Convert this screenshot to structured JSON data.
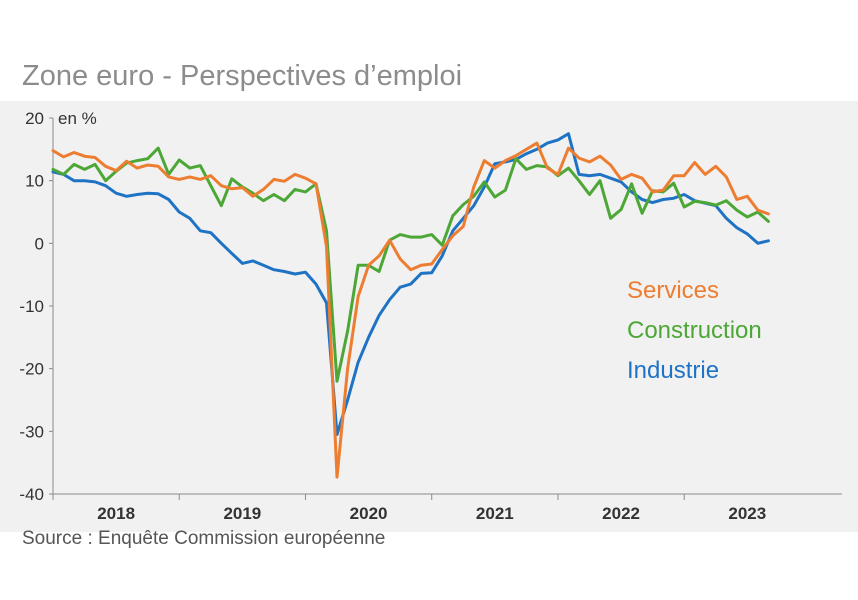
{
  "title": "Zone euro - Perspectives d’emploi",
  "source": "Source : Enquête Commission européenne",
  "colors": {
    "services": "#ed7d31",
    "construction": "#4ca736",
    "industrie": "#1f73c4",
    "background": "#f1f1f1"
  },
  "chart_data": {
    "type": "line",
    "title": "Zone euro - Perspectives d’emploi",
    "ylabel": "en %",
    "xlabel": "",
    "ylim": [
      -40,
      20
    ],
    "yticks": [
      "20",
      "10",
      "0",
      "-10",
      "-20",
      "-30",
      "-40"
    ],
    "xlim": [
      2017.5,
      2023.75
    ],
    "xticks": [
      {
        "label": "2018",
        "x": 2018.0
      },
      {
        "label": "2019",
        "x": 2019.0
      },
      {
        "label": "2020",
        "x": 2020.0
      },
      {
        "label": "2021",
        "x": 2021.0
      },
      {
        "label": "2022",
        "x": 2022.0
      },
      {
        "label": "2023",
        "x": 2023.0
      }
    ],
    "x_start": 2017.5,
    "x_step": 0.0833333,
    "series": [
      {
        "name": "Services",
        "values": [
          14.8,
          13.8,
          14.5,
          13.9,
          13.7,
          12.3,
          11.6,
          13.1,
          12.0,
          12.5,
          12.3,
          10.6,
          10.2,
          10.6,
          10.2,
          10.8,
          9.2,
          8.7,
          8.9,
          7.5,
          8.6,
          10.2,
          9.9,
          11.0,
          10.4,
          9.5,
          -0.5,
          -37.3,
          -20.0,
          -8.5,
          -3.5,
          -2.0,
          0.5,
          -2.5,
          -4.2,
          -3.5,
          -3.3,
          -1.0,
          1.2,
          2.7,
          9.0,
          13.2,
          12.0,
          13.2,
          14.0,
          15.0,
          16.0,
          12.0,
          11.0,
          15.2,
          13.6,
          13.0,
          13.9,
          12.5,
          10.2,
          11.0,
          10.4,
          8.2,
          8.5,
          10.8,
          10.8,
          12.9,
          11.0,
          12.3,
          10.6,
          7.0,
          7.5,
          5.3,
          4.7
        ]
      },
      {
        "name": "Construction",
        "values": [
          11.8,
          11.0,
          12.6,
          11.8,
          12.6,
          10.0,
          11.5,
          12.8,
          13.2,
          13.5,
          15.2,
          11.0,
          13.3,
          12.0,
          12.4,
          9.2,
          6.0,
          10.3,
          9.0,
          8.0,
          6.8,
          7.8,
          6.8,
          8.6,
          8.2,
          9.5,
          2.0,
          -22.0,
          -14.0,
          -3.5,
          -3.5,
          -4.5,
          0.5,
          1.4,
          1.0,
          1.0,
          1.4,
          -0.3,
          4.4,
          6.2,
          7.5,
          9.8,
          7.4,
          8.5,
          13.5,
          11.8,
          12.4,
          12.2,
          10.8,
          12.0,
          10.0,
          7.8,
          10.0,
          4.0,
          5.4,
          9.5,
          4.8,
          8.4,
          8.2,
          9.6,
          5.8,
          6.7,
          6.5,
          6.1,
          6.8,
          5.3,
          4.2,
          5.0,
          3.5
        ]
      },
      {
        "name": "Industrie",
        "values": [
          11.4,
          11.0,
          10.0,
          10.0,
          9.8,
          9.2,
          8.0,
          7.5,
          7.8,
          8.0,
          7.9,
          7.0,
          5.0,
          4.0,
          2.0,
          1.7,
          0.0,
          -1.6,
          -3.2,
          -2.8,
          -3.5,
          -4.2,
          -4.5,
          -4.9,
          -4.6,
          -6.5,
          -9.5,
          -30.5,
          -25.0,
          -19.0,
          -15.0,
          -11.5,
          -9.0,
          -7.0,
          -6.5,
          -4.8,
          -4.7,
          -2.0,
          2.0,
          4.0,
          6.0,
          9.0,
          12.7,
          13.0,
          13.4,
          14.3,
          15.0,
          16.0,
          16.5,
          17.5,
          11.0,
          10.8,
          11.0,
          10.4,
          9.8,
          8.2,
          7.0,
          6.5,
          7.0,
          7.2,
          7.8,
          6.8,
          6.4,
          6.0,
          4.0,
          2.5,
          1.5,
          0.0,
          0.4
        ]
      }
    ],
    "legend": [
      "Services",
      "Construction",
      "Industrie"
    ],
    "legend_position": "right"
  }
}
